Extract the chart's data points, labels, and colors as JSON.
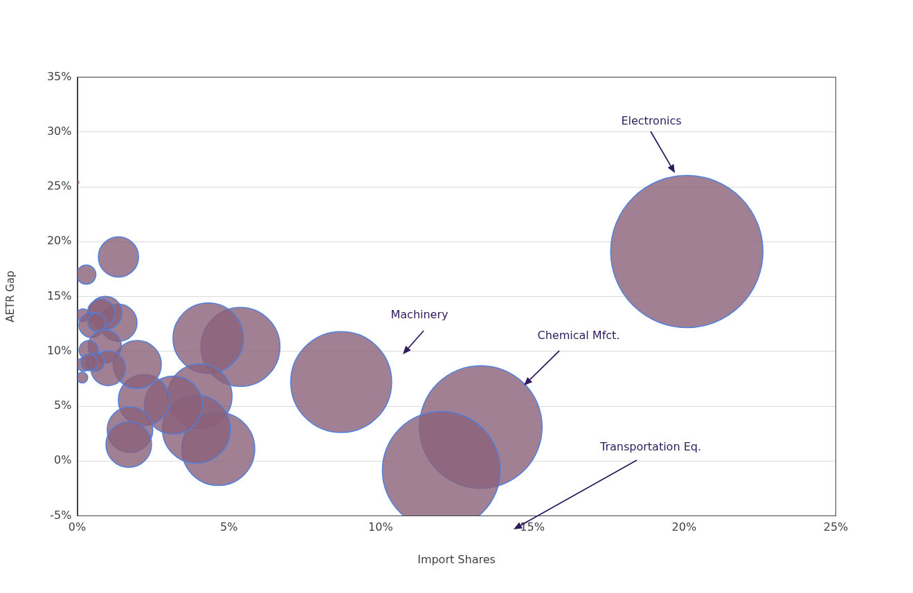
{
  "chart_data": {
    "type": "bubble",
    "xlabel": "Import Shares",
    "ylabel": "AETR Gap",
    "x": [
      20.09,
      13.3,
      12.0,
      8.7,
      5.38,
      4.32,
      4.04,
      4.65,
      3.93,
      3.17,
      2.2,
      1.98,
      1.74,
      1.7,
      1.36,
      0.3,
      0.0,
      0.17,
      1.36,
      0.93,
      0.79,
      0.19,
      0.47,
      0.64,
      0.91,
      0.38,
      1.02,
      0.6,
      0.21,
      0.4
    ],
    "values": [
      19.1,
      3.1,
      -0.85,
      7.2,
      10.4,
      11.2,
      5.9,
      1.1,
      2.9,
      5.1,
      5.55,
      8.8,
      2.85,
      1.5,
      18.6,
      17.0,
      25.4,
      7.6,
      12.6,
      13.5,
      13.5,
      13.3,
      12.4,
      12.65,
      10.45,
      10.1,
      8.45,
      9.0,
      8.8,
      9.0
    ],
    "sizes": [
      1,
      0.65,
      0.6,
      0.44,
      0.27,
      0.215,
      0.18,
      0.23,
      0.2,
      0.146,
      0.113,
      0.1,
      0.09,
      0.09,
      0.07,
      0.016,
      0.0008,
      0.005,
      0.06,
      0.048,
      0.033,
      0.007,
      0.027,
      0.014,
      0.048,
      0.016,
      0.052,
      0.014,
      0.008,
      0.012
    ],
    "color": "#8b6079",
    "xlim": [
      0,
      25
    ],
    "xticks": [
      {
        "value": 0,
        "label": "0%"
      },
      {
        "value": 5,
        "label": "5%"
      },
      {
        "value": 10,
        "label": "10%"
      },
      {
        "value": 15,
        "label": "15%"
      },
      {
        "value": 20,
        "label": "20%"
      },
      {
        "value": 25,
        "label": "25%"
      }
    ],
    "ylim": [
      -5,
      35
    ],
    "yticks": [
      {
        "value": -5,
        "label": "-5%"
      },
      {
        "value": 0,
        "label": "0%"
      },
      {
        "value": 5,
        "label": "5%"
      },
      {
        "value": 10,
        "label": "10%"
      },
      {
        "value": 15,
        "label": "15%"
      },
      {
        "value": 20,
        "label": "20%"
      },
      {
        "value": 25,
        "label": "25%"
      },
      {
        "value": 30,
        "label": "30%"
      },
      {
        "value": 35,
        "label": "35%"
      }
    ],
    "grid": "y",
    "legend": false,
    "annotations": [
      "Electronics",
      "Machinery",
      "Chemical Mfct.",
      "Transportation Eq."
    ]
  }
}
